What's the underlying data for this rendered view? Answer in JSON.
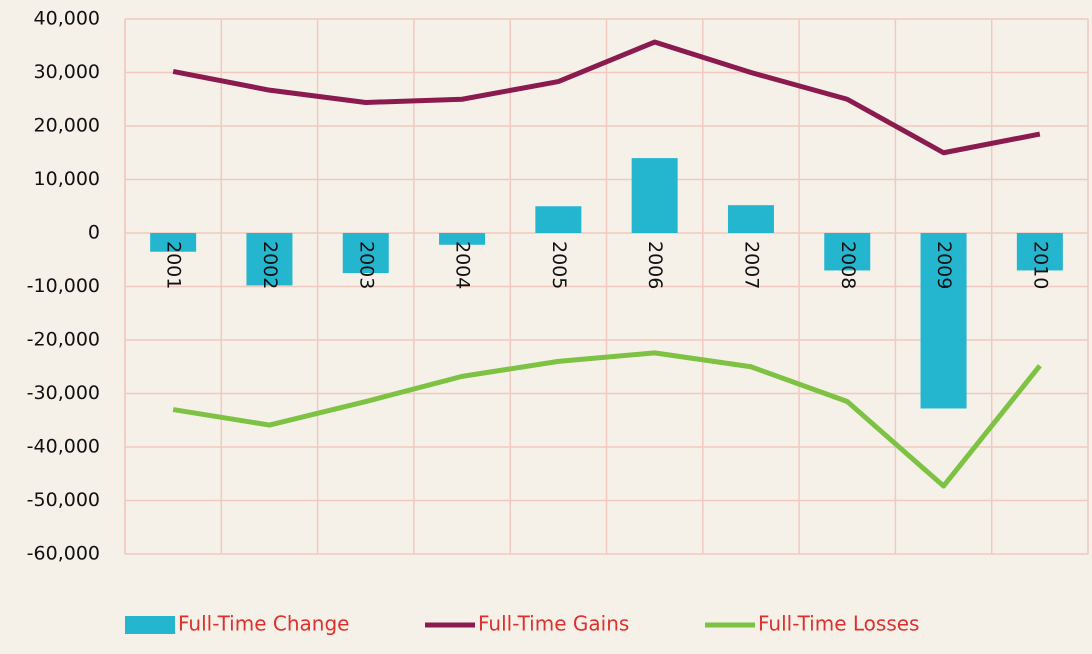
{
  "chart_data": {
    "type": "bar_line",
    "categories": [
      "2001",
      "2002",
      "2003",
      "2004",
      "2005",
      "2006",
      "2007",
      "2008",
      "2009",
      "2010"
    ],
    "series": [
      {
        "name": "Full-Time Change",
        "type": "bar",
        "color": "#25b6cf",
        "values": [
          -3500,
          -9800,
          -7500,
          -2200,
          5000,
          14000,
          5200,
          -7000,
          -32800,
          -7000
        ]
      },
      {
        "name": "Full-Time Gains",
        "type": "line",
        "color": "#8b1a4f",
        "values": [
          30200,
          26700,
          24400,
          25000,
          28300,
          35700,
          30000,
          25000,
          15000,
          18500
        ]
      },
      {
        "name": "Full-Time Losses",
        "type": "line",
        "color": "#7dc242",
        "values": [
          -33000,
          -35900,
          -31500,
          -26800,
          -24000,
          -22400,
          -25000,
          -31500,
          -47300,
          -24800
        ]
      }
    ],
    "ylim": [
      -60000,
      40000
    ],
    "yticks": [
      {
        "value": 40000,
        "label": "40,000"
      },
      {
        "value": 30000,
        "label": "30,000"
      },
      {
        "value": 20000,
        "label": "20,000"
      },
      {
        "value": 10000,
        "label": "10,000"
      },
      0,
      {
        "value": -10000,
        "label": "-10,000"
      },
      {
        "value": -20000,
        "label": "-20,000"
      },
      {
        "value": -30000,
        "label": "-30,000"
      },
      {
        "value": -40000,
        "label": "-40,000"
      },
      {
        "value": -50000,
        "label": "-50,000"
      },
      {
        "value": -60000,
        "label": "-60,000"
      }
    ],
    "grid": true,
    "legend": "bottom"
  }
}
